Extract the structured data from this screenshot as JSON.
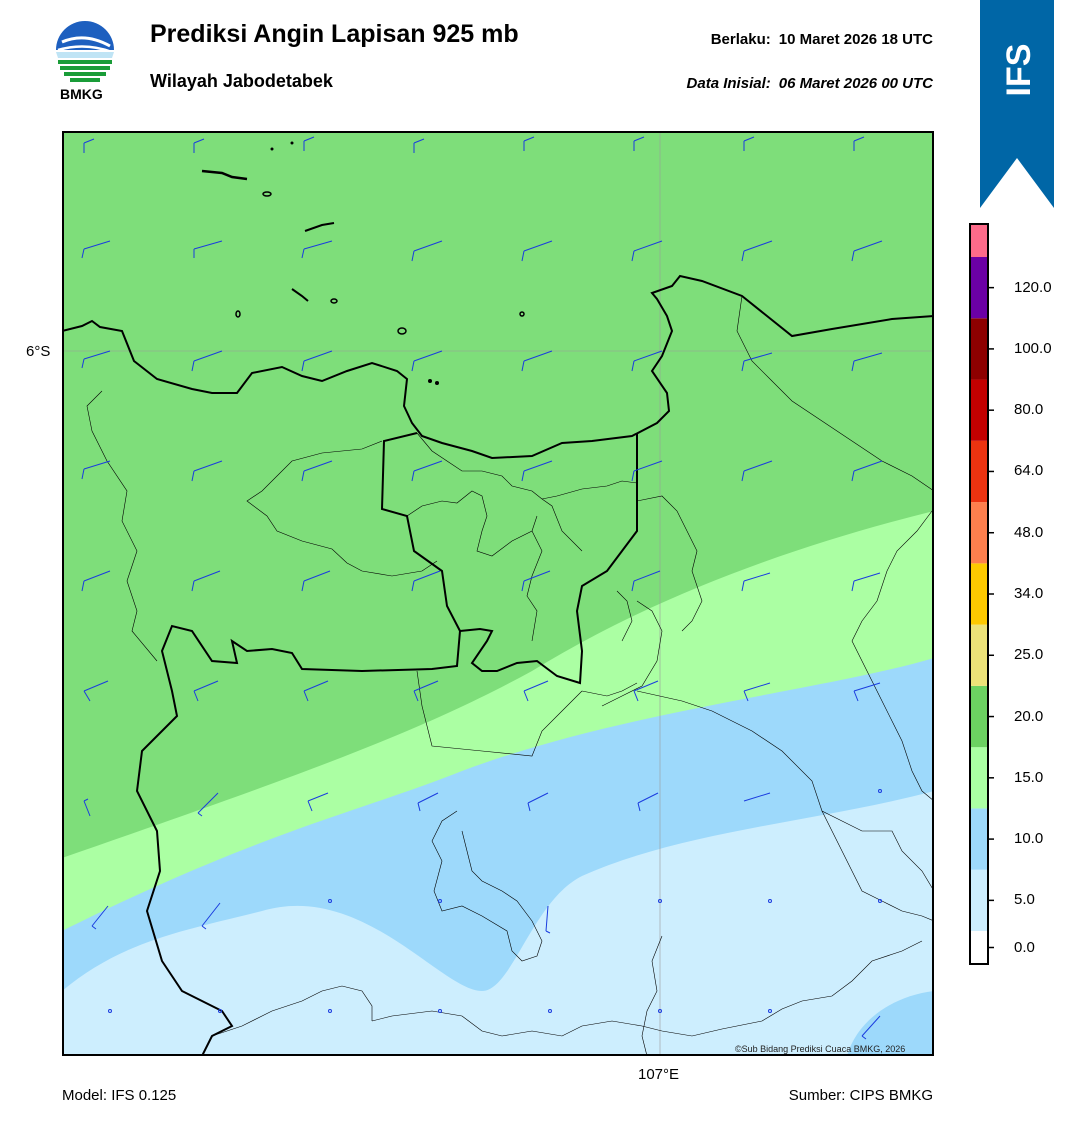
{
  "header": {
    "title": "Prediksi Angin Lapisan 925 mb",
    "region": "Wilayah Jabodetabek",
    "valid_label": "Berlaku:",
    "valid_value": "10 Maret 2026 18 UTC",
    "init_label": "Data Inisial:",
    "init_value": "06 Maret 2026 00 UTC"
  },
  "logo": {
    "text": "BMKG",
    "icon": "bmkg-logo"
  },
  "banner": {
    "text": "IFS",
    "color": "#0066a6"
  },
  "map": {
    "lat_label": "6°S",
    "lon_label": "107°E",
    "copyright": "©Sub Bidang Prediksi Cuaca BMKG, 2026",
    "contour_colors": {
      "0-5": "#cdeefe",
      "5-10": "#9dd9fb",
      "10-15": "#abffa3",
      "15-20": "#7ede7a"
    },
    "barb_color": "#1a3cdf",
    "coast_color": "#000000"
  },
  "colorbar": {
    "labels": [
      "0.0",
      "5.0",
      "10.0",
      "15.0",
      "20.0",
      "25.0",
      "34.0",
      "48.0",
      "64.0",
      "80.0",
      "100.0",
      "120.0"
    ],
    "colors": [
      "#ffffff",
      "#cdeefe",
      "#9dd9fb",
      "#abffa3",
      "#6cd161",
      "#ece278",
      "#fdc900",
      "#fd7f4d",
      "#eb3310",
      "#c30000",
      "#8d0000",
      "#6b00a5",
      "#fd6b8a"
    ]
  },
  "footer": {
    "model": "Model: IFS 0.125",
    "source": "Sumber: CIPS BMKG"
  }
}
